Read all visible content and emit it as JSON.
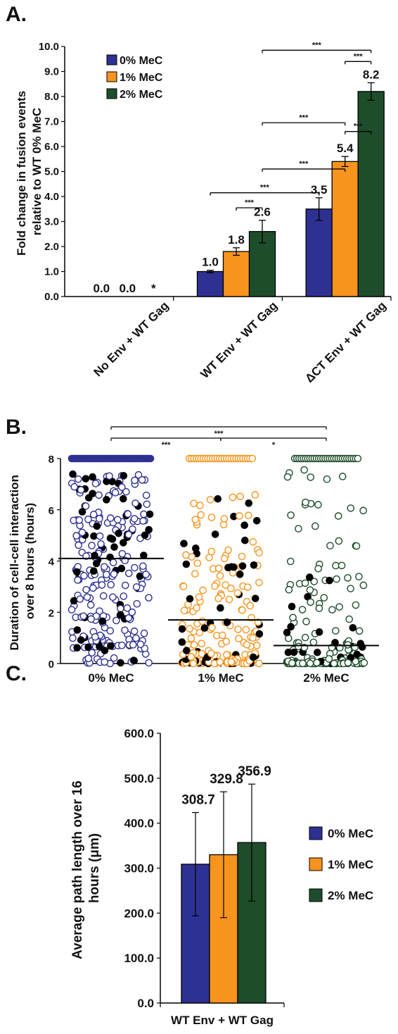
{
  "colors": {
    "mec0": "#2e3192",
    "mec1": "#f7941d",
    "mec2": "#1e4d2b",
    "black": "#000000"
  },
  "chart_data": [
    {
      "panel": "A.",
      "type": "bar",
      "ylabel_lines": [
        "Fold change in fusion events",
        "relative to WT 0% MeC"
      ],
      "ylim": [
        0,
        10
      ],
      "yticks": [
        "0.0",
        "1.0",
        "2.0",
        "3.0",
        "4.0",
        "5.0",
        "6.0",
        "7.0",
        "8.0",
        "9.0",
        "10.0"
      ],
      "categories": [
        "No Env + WT Gag",
        "WT Env + WT Gag",
        "ΔCT Env + WT Gag"
      ],
      "legend_position": "top-left",
      "series": [
        {
          "name": "0% MeC",
          "values": [
            0.0,
            1.0,
            3.5
          ],
          "errors": [
            0,
            0.05,
            0.45
          ],
          "labels": [
            "0.0",
            "1.0",
            "3.5"
          ]
        },
        {
          "name": "1% MeC",
          "values": [
            0.0,
            1.8,
            5.4
          ],
          "errors": [
            0,
            0.15,
            0.2
          ],
          "labels": [
            "0.0",
            "1.8",
            "5.4"
          ]
        },
        {
          "name": "2% MeC",
          "values": [
            0.0,
            2.6,
            8.2
          ],
          "errors": [
            0,
            0.45,
            0.35
          ],
          "labels": [
            "*",
            "2.6",
            "8.2"
          ]
        }
      ],
      "significance": [
        {
          "from": [
            1,
            1
          ],
          "to": [
            1,
            2
          ],
          "y": 3.55,
          "label": "***"
        },
        {
          "from": [
            1,
            2
          ],
          "to": [
            2,
            1
          ],
          "y": 5.1,
          "label": "***"
        },
        {
          "from": [
            1,
            0
          ],
          "to": [
            2,
            0
          ],
          "y": 4.15,
          "label": "***"
        },
        {
          "from": [
            1,
            2
          ],
          "to": [
            2,
            1
          ],
          "y": 6.95,
          "label": "***"
        },
        {
          "from": [
            2,
            1
          ],
          "to": [
            2,
            2
          ],
          "y": 6.6,
          "label": "***"
        },
        {
          "from": [
            1,
            2
          ],
          "to": [
            2,
            2
          ],
          "y": 9.85,
          "label": "***"
        },
        {
          "from": [
            2,
            1
          ],
          "to": [
            2,
            2
          ],
          "y": 9.4,
          "label": "***"
        }
      ]
    },
    {
      "panel": "B.",
      "type": "scatter",
      "ylabel_lines": [
        "Duration of cell-cell interaction",
        "over 8 hours (hours)"
      ],
      "ylim": [
        0,
        8
      ],
      "yticks": [
        "0",
        "2",
        "4",
        "6",
        "8"
      ],
      "categories": [
        "0% MeC",
        "1% MeC",
        "2% MeC"
      ],
      "medians": [
        4.1,
        1.7,
        0.7
      ],
      "significance": [
        {
          "from": 0,
          "to": 1,
          "label": "***"
        },
        {
          "from": 1,
          "to": 2,
          "label": "*"
        },
        {
          "from": 0,
          "to": 2,
          "label": "***"
        }
      ]
    },
    {
      "panel": "C.",
      "type": "bar",
      "ylabel_lines": [
        "Average path length over 16",
        "hours (μm)"
      ],
      "ylim": [
        0,
        600
      ],
      "yticks": [
        "0.0",
        "100.0",
        "200.0",
        "300.0",
        "400.0",
        "500.0",
        "600.0"
      ],
      "categories": [
        "WT Env + WT Gag"
      ],
      "legend_position": "right",
      "series": [
        {
          "name": "0% MeC",
          "values": [
            308.7
          ],
          "errors": [
            115
          ],
          "labels": [
            "308.7"
          ]
        },
        {
          "name": "1% MeC",
          "values": [
            329.8
          ],
          "errors": [
            140
          ],
          "labels": [
            "329.8"
          ]
        },
        {
          "name": "2% MeC",
          "values": [
            356.9
          ],
          "errors": [
            130
          ],
          "labels": [
            "356.9"
          ]
        }
      ]
    }
  ]
}
